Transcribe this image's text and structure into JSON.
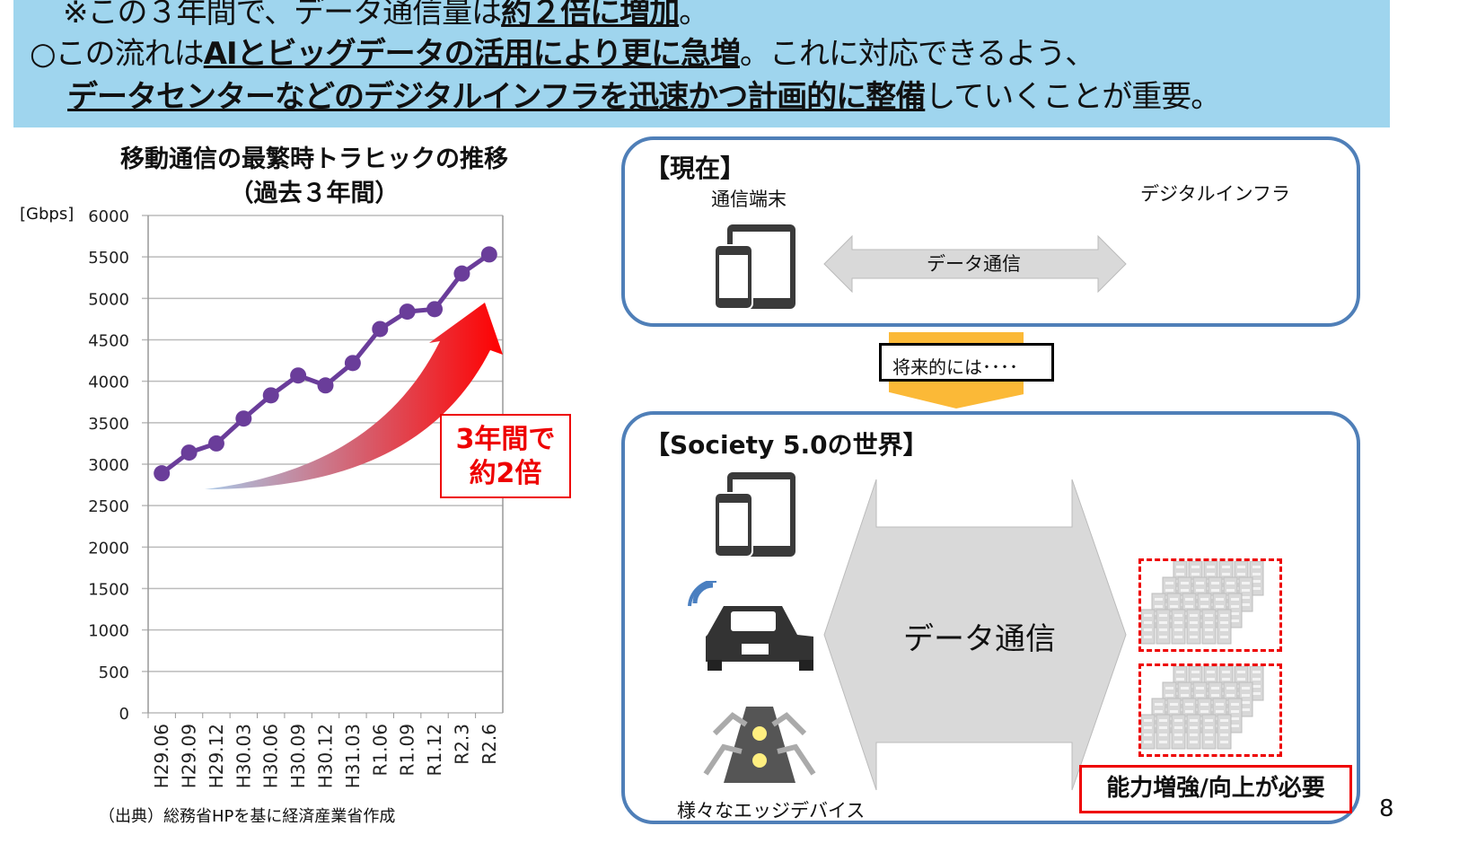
{
  "banner": {
    "line1_plain": "※この３年間で、データ通信量は",
    "line1_bold": "約２倍に増加",
    "line1_end": "。",
    "line2_plain": "○この流れは",
    "line2_bold": "AIとビッグデータの活用により更に急増",
    "line2_end": "。これに対応できるよう、",
    "line3_bold": "データセンターなどのデジタルインフラを迅速かつ計画的に整備",
    "line3_end": "していくことが重要。"
  },
  "chart_data": {
    "type": "line",
    "title": "移動通信の最繁時トラヒックの推移",
    "subtitle": "（過去３年間）",
    "ylabel": "[Gbps]",
    "ylim": [
      0,
      6000
    ],
    "yticks": [
      0,
      500,
      1000,
      1500,
      2000,
      2500,
      3000,
      3500,
      4000,
      4500,
      5000,
      5500,
      6000
    ],
    "categories": [
      "H29.06",
      "H29.09",
      "H29.12",
      "H30.03",
      "H30.06",
      "H30.09",
      "H30.12",
      "H31.03",
      "R1.06",
      "R1.09",
      "R1.12",
      "R2.3",
      "R2.6"
    ],
    "values": [
      2890,
      3140,
      3250,
      3550,
      3830,
      4070,
      3950,
      4220,
      4630,
      4840,
      4870,
      5300,
      5530
    ],
    "grid": true,
    "color": "#6a3d9a",
    "annotation": "3年間で\n約2倍",
    "source": "（出典）総務省HPを基に経済産業省作成"
  },
  "current": {
    "title": "【現在】",
    "device_label": "通信端末",
    "infra_label": "デジタルインフラ",
    "arrow_label": "データ通信"
  },
  "transition": "将来的には････",
  "future": {
    "title": "【Society 5.0の世界】",
    "arrow_label": "データ通信",
    "edge_label": "様々なエッジデバイス",
    "need_label": "能力増強/向上が必要"
  },
  "page_number": "8",
  "colors": {
    "banner": "#9fd5ee",
    "panel_border": "#4f7fb8",
    "accent_red": "#e00000",
    "line": "#6a3d9a",
    "server": "#7f9fcf"
  }
}
